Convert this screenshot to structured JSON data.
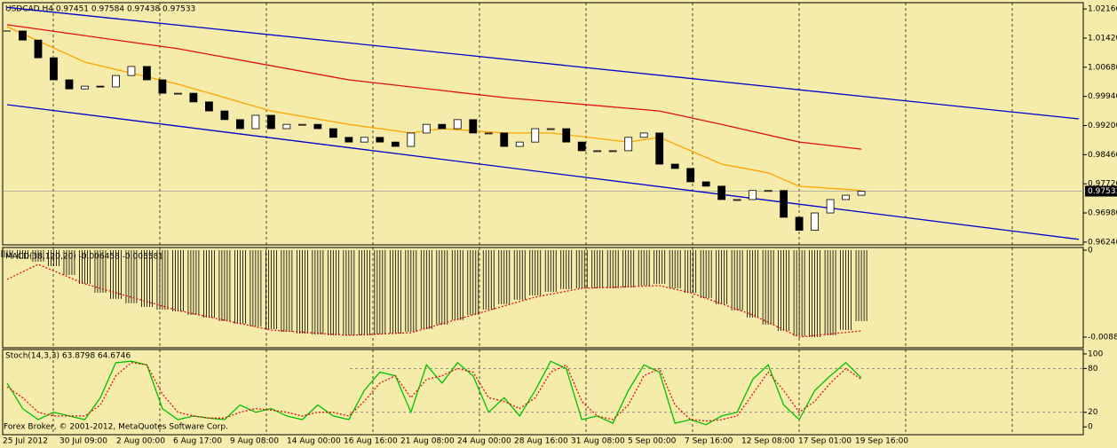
{
  "footer": "Forex Broker, © 2001-2012, MetaQuotes Software Corp.",
  "chart_data": [
    {
      "type": "candlestick",
      "title": "USDCAD,H4  0.97451 0.97584 0.97438 0.97533",
      "values": [
        1.016,
        1.0137,
        1.0092,
        1.0036,
        1.0013,
        1.002,
        1.0018,
        1.0047,
        1.007,
        1.0036,
        1.0002,
        1.0002,
        0.998,
        0.9957,
        0.9935,
        0.9912,
        0.9946,
        0.9912,
        0.9923,
        0.9923,
        0.9912,
        0.989,
        0.9878,
        0.989,
        0.9878,
        0.9867,
        0.9901,
        0.9923,
        0.9912,
        0.9935,
        0.9901,
        0.9901,
        0.9867,
        0.9878,
        0.9912,
        0.9912,
        0.9878,
        0.9856,
        0.9856,
        0.9856,
        0.989,
        0.9901,
        0.9822,
        0.9811,
        0.9777,
        0.9766,
        0.9732,
        0.9732,
        0.9755,
        0.9755,
        0.9687,
        0.9654,
        0.9698,
        0.9732,
        0.9743,
        0.9753
      ],
      "xlim": [
        0,
        69
      ],
      "ylim": [
        0.9617,
        1.0232
      ],
      "yticks": [
        {
          "value": 1.0216,
          "label": "1.02160"
        },
        {
          "value": 1.0142,
          "label": "1.01420"
        },
        {
          "value": 1.0068,
          "label": "1.00680"
        },
        {
          "value": 0.9994,
          "label": "0.99940"
        },
        {
          "value": 0.992,
          "label": "0.99200"
        },
        {
          "value": 0.9846,
          "label": "0.98460"
        },
        {
          "value": 0.9772,
          "label": "0.97720"
        },
        {
          "value": 0.9698,
          "label": "0.96980"
        },
        {
          "value": 0.9624,
          "label": "0.96240"
        }
      ],
      "last_price": {
        "value": 0.97533,
        "label": "0.97533"
      },
      "x_labels": [
        "25 Jul 2012",
        "30 Jul 09:00",
        "2 Aug 00:00",
        "6 Aug 17:00",
        "9 Aug 08:00",
        "14 Aug 00:00",
        "16 Aug 16:00",
        "21 Aug 08:00",
        "24 Aug 00:00",
        "28 Aug 16:00",
        "31 Aug 08:00",
        "5 Sep 00:00",
        "7 Sep 16:00",
        "12 Sep 08:00",
        "17 Sep 01:00",
        "19 Sep 16:00"
      ],
      "overlays": [
        {
          "color": "#ffa500",
          "x": [
            0,
            5,
            11,
            17,
            22,
            26,
            28,
            32,
            35,
            40,
            42,
            44,
            46,
            49,
            51,
            55
          ],
          "values": [
            1.0171,
            1.0081,
            1.0025,
            0.9957,
            0.9923,
            0.9901,
            0.9912,
            0.9901,
            0.9901,
            0.9878,
            0.989,
            0.9856,
            0.9822,
            0.98,
            0.9766,
            0.9755
          ]
        },
        {
          "color": "#e01010",
          "x": [
            0,
            11,
            22,
            32,
            42,
            46,
            51,
            55
          ],
          "values": [
            1.0176,
            1.0115,
            1.0036,
            0.9991,
            0.9957,
            0.9923,
            0.9878,
            0.986
          ]
        },
        {
          "color": "#0000cc",
          "x": [
            0,
            69
          ],
          "values": [
            1.022,
            0.9937
          ]
        },
        {
          "color": "#0000cc",
          "x": [
            0,
            69
          ],
          "values": [
            0.9973,
            0.9631
          ]
        }
      ]
    },
    {
      "type": "macd",
      "title": "MACD(38,120,20) -0.006458 -0.005581",
      "color": "#000000",
      "values": [
        -0.00072,
        -0.0009,
        -0.00118,
        -0.00163,
        -0.00253,
        -0.00344,
        -0.00434,
        -0.00497,
        -0.00542,
        -0.00579,
        -0.00606,
        -0.00624,
        -0.0066,
        -0.00687,
        -0.00723,
        -0.0075,
        -0.00777,
        -0.00805,
        -0.00832,
        -0.0085,
        -0.00859,
        -0.00868,
        -0.00868,
        -0.00868,
        -0.00859,
        -0.0085,
        -0.00832,
        -0.00805,
        -0.00759,
        -0.00714,
        -0.0066,
        -0.00606,
        -0.00551,
        -0.00506,
        -0.00461,
        -0.00425,
        -0.00398,
        -0.00389,
        -0.00389,
        -0.00389,
        -0.0038,
        -0.00362,
        -0.00344,
        -0.00389,
        -0.00434,
        -0.00488,
        -0.00551,
        -0.00615,
        -0.00687,
        -0.0076,
        -0.00823,
        -0.00877,
        -0.00886,
        -0.00868,
        -0.00814,
        -0.00723
      ],
      "signal": {
        "color": "#e01010",
        "x": [
          0,
          2,
          5,
          11,
          17,
          22,
          26,
          29,
          34,
          37,
          42,
          44,
          48,
          51,
          55
        ],
        "values": [
          -0.00298,
          -0.00145,
          -0.00344,
          -0.00615,
          -0.00814,
          -0.00868,
          -0.00841,
          -0.00705,
          -0.00479,
          -0.00389,
          -0.00362,
          -0.00434,
          -0.0066,
          -0.00886,
          -0.00823
        ]
      },
      "ylim": [
        -0.00995,
        0.00027
      ],
      "yticks": [
        0,
        -0.00886
      ]
    },
    {
      "type": "stochastic",
      "title": "Stoch(14,3,3) 63.8798 64.6746",
      "main": {
        "color": "#00c000",
        "values": [
          60,
          25,
          10,
          20,
          15,
          10,
          40,
          88,
          90,
          85,
          25,
          10,
          15,
          12,
          10,
          30,
          20,
          25,
          15,
          10,
          30,
          15,
          10,
          50,
          75,
          70,
          20,
          85,
          60,
          88,
          70,
          20,
          40,
          15,
          50,
          90,
          80,
          10,
          15,
          5,
          50,
          85,
          75,
          5,
          10,
          3,
          15,
          20,
          65,
          85,
          30,
          10,
          50,
          70,
          88,
          67
        ]
      },
      "signal": {
        "color": "#e01010",
        "values": [
          55,
          40,
          20,
          15,
          15,
          15,
          30,
          70,
          88,
          85,
          45,
          20,
          15,
          12,
          12,
          20,
          25,
          23,
          20,
          15,
          20,
          20,
          15,
          35,
          60,
          70,
          40,
          65,
          70,
          80,
          75,
          40,
          35,
          25,
          40,
          75,
          85,
          35,
          15,
          10,
          30,
          70,
          80,
          30,
          10,
          8,
          10,
          15,
          45,
          75,
          50,
          20,
          35,
          60,
          80,
          65
        ]
      },
      "ylim": [
        -10.7,
        106
      ],
      "yticks": [
        100,
        80,
        20,
        0
      ],
      "levels": [
        80,
        20
      ]
    }
  ]
}
